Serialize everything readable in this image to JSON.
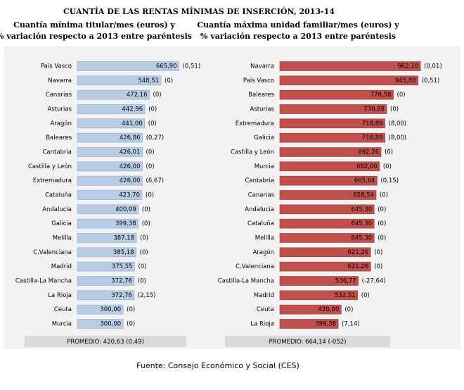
{
  "title": "CUANTÍA DE LAS RENTAS MÍNIMAS DE INSERCIÓN, 2013-14",
  "source": "Fuente: Consejo Económico y Social (CES)",
  "chart_data": [
    {
      "type": "bar",
      "orientation": "horizontal",
      "subtitle": [
        "Cuantía mínima titular/mes (euros) y",
        "% variación respecto a 2013 entre paréntesis"
      ],
      "categories": [
        "País Vasco",
        "Navarra",
        "Canarias",
        "Asturias",
        "Aragón",
        "Baleares",
        "Cantabria",
        "Castilla y León",
        "Extremadura",
        "Cataluña",
        "Andalucía",
        "Galicia",
        "Melilla",
        "C.Valenciana",
        "Madrid",
        "Castilla-La Mancha",
        "La Rioja",
        "Ceuta",
        "Murcia"
      ],
      "values": [
        665.9,
        548.51,
        472.16,
        442.96,
        441.0,
        426.86,
        426.01,
        426.0,
        426.0,
        423.7,
        400.09,
        399.38,
        387.18,
        385.18,
        375.55,
        372.76,
        372.76,
        300.0,
        300.0
      ],
      "value_labels": [
        "665,90",
        "548,51",
        "472,16",
        "442,96",
        "441,00",
        "426,86",
        "426,01",
        "426,00",
        "426,00",
        "423,70",
        "400,09",
        "399,38",
        "387,18",
        "385,18",
        "375,55",
        "372,76",
        "372,76",
        "300,00",
        "300,00"
      ],
      "change_labels": [
        "(0,51)",
        "(0)",
        "(0)",
        "(0)",
        "(0)",
        "(0,27)",
        "(0)",
        "(0)",
        "(6,67)",
        "(0)",
        "(0)",
        "(0)",
        "(0)",
        "(0)",
        "(0)",
        "(0)",
        "(2,15)",
        "(0)",
        "(0)"
      ],
      "average_label": "PROMEDIO: 420,63  (0,49)",
      "color": "#b8cce4",
      "xlim": [
        0,
        700
      ]
    },
    {
      "type": "bar",
      "orientation": "horizontal",
      "subtitle": [
        "Cuantía máxima unidad familiar/mes (euros) y",
        "% variación respecto a 2013 entre paréntesis"
      ],
      "categories": [
        "Navarra",
        "País Vasco",
        "Baleares",
        "Asturias",
        "Extremadura",
        "Galicia",
        "Castilla y León",
        "Murcia",
        "Cantabria",
        "Canarias",
        "Andalucía",
        "Cataluña",
        "Melilla",
        "Aragón",
        "C.Valenciana",
        "Castilla-La Mancha",
        "Madrid",
        "Ceuta",
        "La Rioja"
      ],
      "values": [
        962.1,
        945.88,
        776.58,
        730.88,
        718.89,
        718.89,
        692.26,
        682.0,
        665.64,
        658.54,
        645.3,
        645.3,
        645.3,
        621.26,
        621.26,
        536.77,
        532.51,
        420.0,
        399.38
      ],
      "value_labels": [
        "962,10",
        "945,88",
        "776,58",
        "730,88",
        "718,89",
        "718,89",
        "692,26",
        "682,00",
        "665,64",
        "658,54",
        "645,30",
        "645,30",
        "645,30",
        "621,26",
        "621,26",
        "536,77",
        "532,51",
        "420,00",
        "399,38"
      ],
      "change_labels": [
        "(0,01)",
        "(0,51)",
        "(0)",
        "(0)",
        "(8,00)",
        "(8,00)",
        "(0)",
        "(0)",
        "(0,15)",
        "(0)",
        "(0)",
        "(0)",
        "(0)",
        "(0)",
        "(0)",
        "(-27,64)",
        "(0)",
        "(0)",
        "(7,14)"
      ],
      "average_label": "PROMEDIO: 664,14  (-052)",
      "color": "#c0504d",
      "xlim": [
        0,
        1000
      ]
    }
  ]
}
